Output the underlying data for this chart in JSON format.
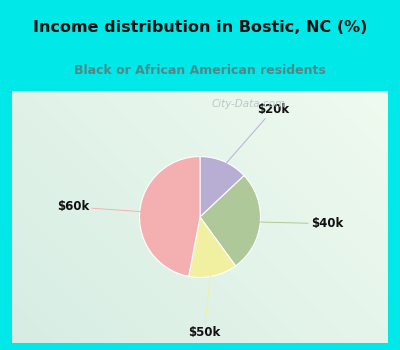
{
  "title": "Income distribution in Bostic, NC (%)",
  "subtitle": "Black or African American residents",
  "slices": [
    {
      "label": "$20k",
      "value": 13,
      "color": "#b8aed4"
    },
    {
      "label": "$40k",
      "value": 27,
      "color": "#afc89a"
    },
    {
      "label": "$50k",
      "value": 13,
      "color": "#f0f0a0"
    },
    {
      "label": "$60k",
      "value": 47,
      "color": "#f4b0b0"
    }
  ],
  "start_angle": 90,
  "background_color": "#00e8e8",
  "chart_bg_color": "#e8f5ee",
  "title_color": "#111111",
  "subtitle_color": "#508888",
  "label_color": "#111111",
  "watermark": "City-Data.com",
  "watermark_color": "#b0c0c0"
}
